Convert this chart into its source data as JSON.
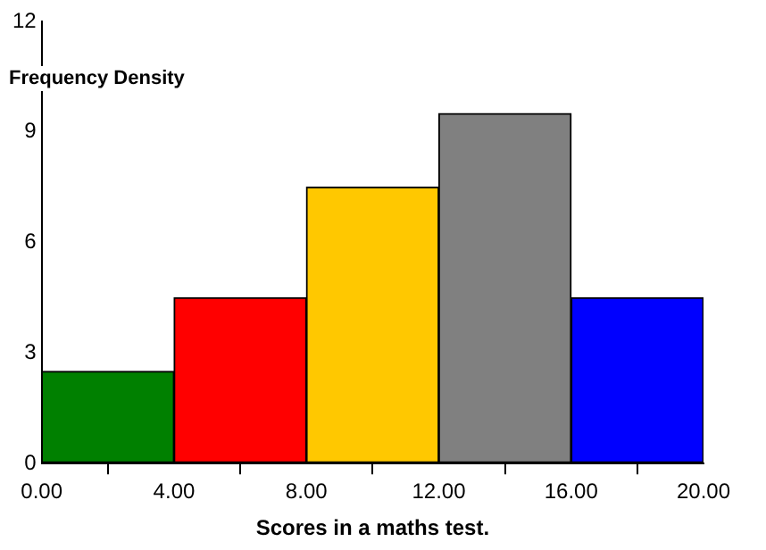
{
  "chart_data": {
    "type": "histogram",
    "ylabel": "Frequency Density",
    "xlabel": "Scores in a maths test.",
    "bins": [
      0,
      4,
      8,
      12,
      16,
      20
    ],
    "values": [
      2.5,
      4.5,
      7.5,
      9.5,
      4.5
    ],
    "colors": [
      "#008000",
      "#ff0000",
      "#ffc800",
      "#808080",
      "#0000ff"
    ],
    "xlim": [
      0,
      20
    ],
    "xticks": [
      {
        "value": 0,
        "label": "0.00"
      },
      {
        "value": 4,
        "label": "4.00"
      },
      {
        "value": 8,
        "label": "8.00"
      },
      {
        "value": 12,
        "label": "12.00"
      },
      {
        "value": 16,
        "label": "16.00"
      },
      {
        "value": 20,
        "label": "20.00"
      }
    ],
    "ylim": [
      0,
      12
    ],
    "yticks": [
      0,
      3,
      6,
      9,
      12
    ],
    "grid": false,
    "legend": false
  }
}
